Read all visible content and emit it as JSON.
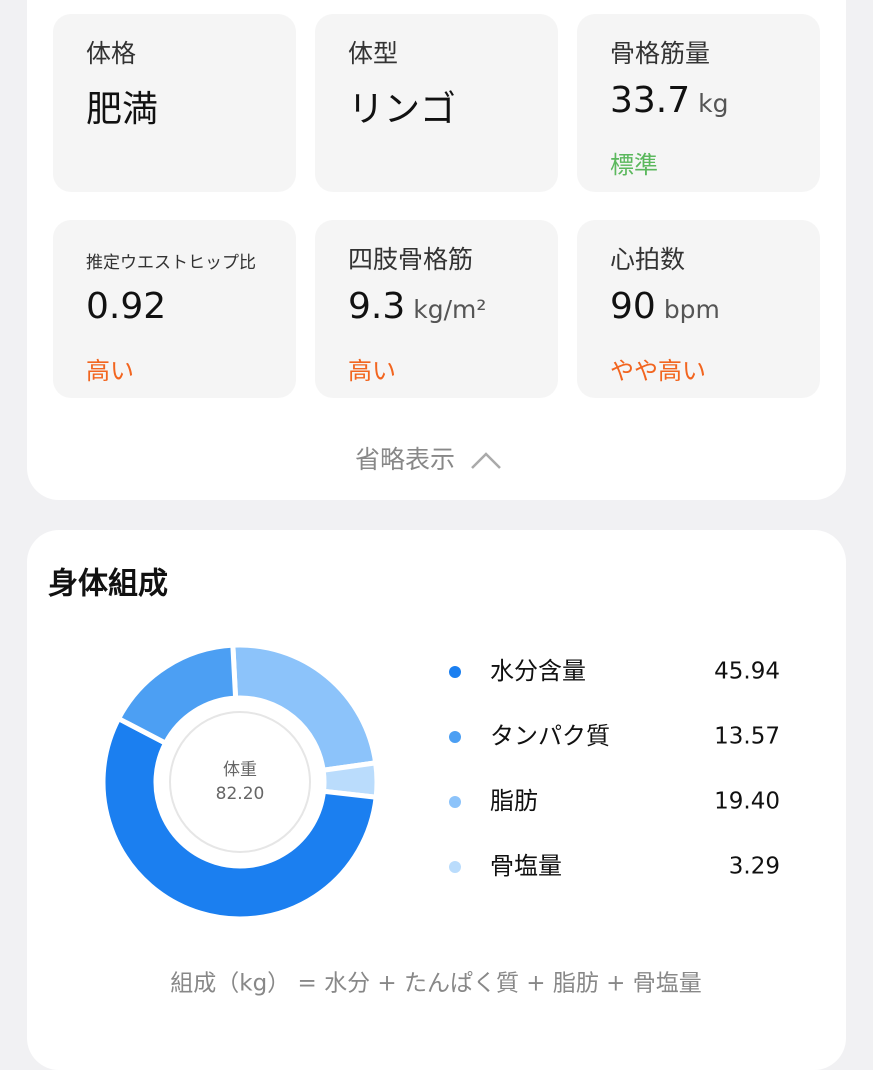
{
  "metrics": [
    {
      "label": "体格",
      "value": "肥満"
    },
    {
      "label": "体型",
      "value": "リンゴ"
    },
    {
      "label": "骨格筋量",
      "value": "33.7",
      "unit": "kg",
      "status": "標準",
      "status_color": "#5bb85d"
    },
    {
      "label": "推定ウエストヒップ比",
      "value": "0.92",
      "status": "高い",
      "status_color": "#f2651f"
    },
    {
      "label": "四肢骨格筋",
      "value": "9.3",
      "unit": "kg/m²",
      "status": "高い",
      "status_color": "#f2651f"
    },
    {
      "label": "心拍数",
      "value": "90",
      "unit": "bpm",
      "status": "やや高い",
      "status_color": "#f2651f"
    }
  ],
  "collapse_label": "省略表示",
  "composition": {
    "title": "身体組成",
    "center_label": "体重",
    "center_value": "82.20",
    "items": [
      {
        "name": "水分含量",
        "color": "#1b7ff0",
        "value": 45.94,
        "value_label": "45.94"
      },
      {
        "name": "タンパク質",
        "color": "#4c9ff3",
        "value": 13.57,
        "value_label": "13.57"
      },
      {
        "name": "脂肪",
        "color": "#8cc3fa",
        "value": 19.4,
        "value_label": "19.40"
      },
      {
        "name": "骨塩量",
        "color": "#badcfc",
        "value": 3.29,
        "value_label": "3.29"
      }
    ],
    "formula": "組成（kg） = 水分 + たんぱく質 + 脂肪 + 骨塩量"
  }
}
